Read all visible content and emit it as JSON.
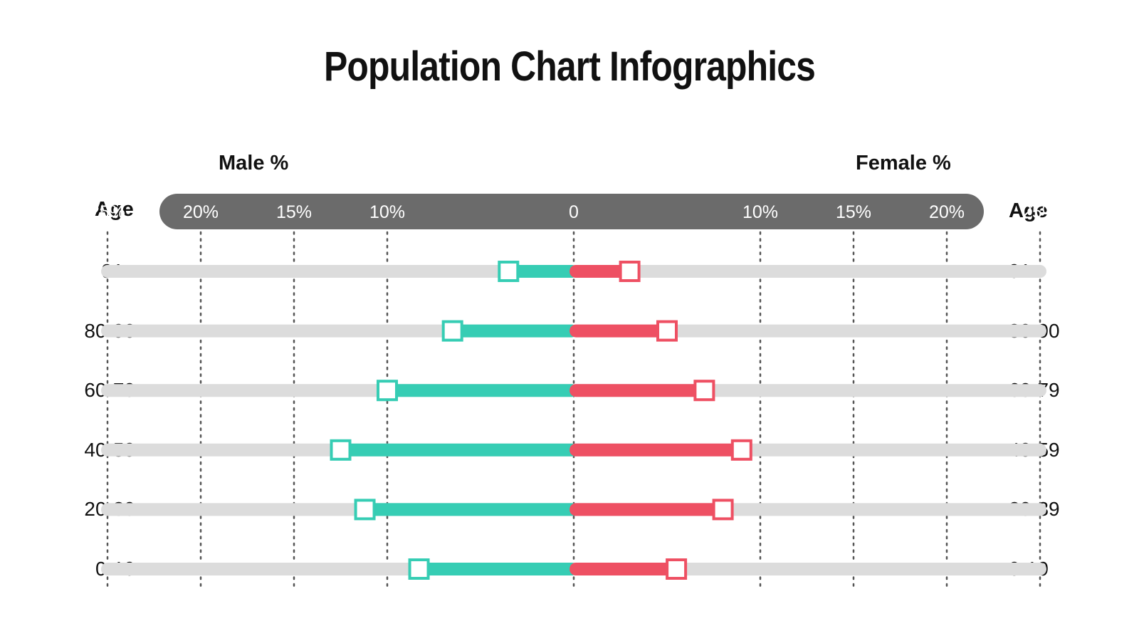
{
  "title": "Population Chart Infographics",
  "left_header": "Male %",
  "right_header": "Female %",
  "age_header": "Age",
  "colors": {
    "male": "#36cdb4",
    "female": "#ee5063",
    "track": "#dcdcdc",
    "scale_bar": "#6b6b6b",
    "grid": "#555555"
  },
  "chart_data": {
    "type": "bar",
    "subtype": "population-pyramid",
    "title": "Population Chart Infographics",
    "categories": [
      "91+",
      "80-90",
      "60-79",
      "40-59",
      "20-39",
      "0-19"
    ],
    "series": [
      {
        "name": "Male %",
        "values": [
          3.5,
          6.5,
          10.0,
          12.5,
          11.2,
          8.3
        ]
      },
      {
        "name": "Female %",
        "values": [
          3.0,
          5.0,
          7.0,
          9.0,
          8.0,
          5.5
        ]
      }
    ],
    "ticks_left": [
      "25%",
      "20%",
      "15%",
      "10%",
      "0"
    ],
    "ticks_right": [
      "10%",
      "15%",
      "20%",
      "25%"
    ],
    "xlim": [
      0,
      25
    ],
    "grid": true
  }
}
